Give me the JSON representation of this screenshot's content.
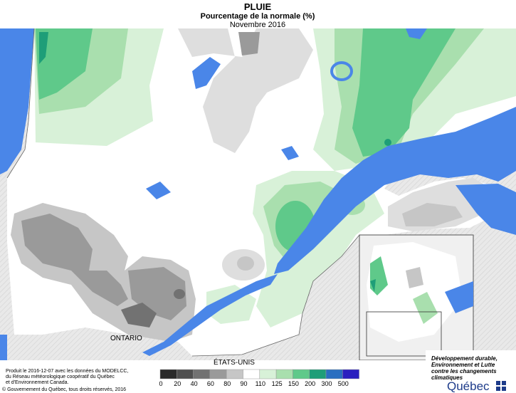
{
  "header": {
    "title": "PLUIE",
    "subtitle": "Pourcentage de la normale (%)",
    "period": "Novembre 2016"
  },
  "map_labels": [
    "ONTARIO",
    "ÉTATS-UNIS"
  ],
  "legend": {
    "breaks": [
      0,
      20,
      40,
      60,
      80,
      90,
      110,
      125,
      150,
      200,
      300,
      500
    ],
    "colors": [
      "#2b2b2b",
      "#4f4f4f",
      "#727272",
      "#9a9a9a",
      "#c6c6c6",
      "#ffffff",
      "#d8f1d8",
      "#a9dfae",
      "#5fc98a",
      "#1e9e78",
      "#2a6ec0",
      "#2a1fbf"
    ]
  },
  "credits": [
    "Produit le 2016-12-07 avec les données du MODELCC,",
    "du Réseau météorologique coopératif du Québec",
    "et d'Environnement Canada.",
    "© Gouvernement du Québec, tous droits réservés, 2016"
  ],
  "logo": {
    "ministry": [
      "Développement durable,",
      "Environnement et Lutte",
      "contre les changements",
      "climatiques"
    ],
    "name": "Québec"
  }
}
